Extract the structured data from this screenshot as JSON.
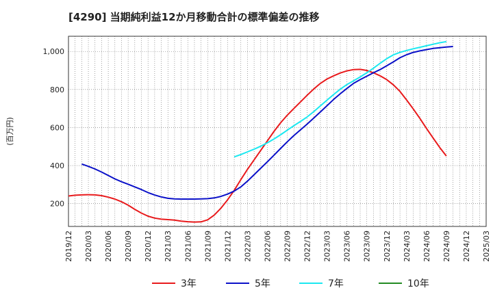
{
  "chart_data": {
    "type": "line",
    "title": "[4290]  当期純利益12か月移動合計の標準偏差の推移",
    "ylabel": "(百万円)",
    "xlabel": "",
    "ylim": [
      80,
      1080
    ],
    "yticks": [
      200,
      400,
      600,
      800,
      "1,000"
    ],
    "ytick_values": [
      200,
      400,
      600,
      800,
      1000
    ],
    "x_ticks": [
      "2019/12",
      "2020/03",
      "2020/06",
      "2020/09",
      "2020/12",
      "2021/03",
      "2021/06",
      "2021/09",
      "2021/12",
      "2022/03",
      "2022/06",
      "2022/09",
      "2022/12",
      "2023/03",
      "2023/06",
      "2023/09",
      "2023/12",
      "2024/03",
      "2024/06",
      "2024/09",
      "2024/12",
      "2025/03"
    ],
    "grid": true,
    "legend_position": "bottom",
    "series": [
      {
        "name": "3年",
        "color": "#e8191b",
        "start_index": 0,
        "values": [
          240,
          244,
          246,
          247,
          246,
          242,
          234,
          224,
          210,
          192,
          170,
          150,
          134,
          124,
          118,
          116,
          113,
          108,
          105,
          103,
          104,
          115,
          140,
          176,
          220,
          270,
          326,
          380,
          430,
          480,
          530,
          580,
          625,
          665,
          700,
          735,
          770,
          803,
          832,
          855,
          872,
          887,
          898,
          905,
          906,
          900,
          888,
          872,
          852,
          825,
          790,
          745,
          698,
          648,
          595,
          545,
          495,
          450
        ]
      },
      {
        "name": "5年",
        "color": "#0a10c8",
        "start_index": 2,
        "values": [
          408,
          396,
          382,
          366,
          348,
          330,
          315,
          302,
          288,
          274,
          258,
          245,
          235,
          228,
          225,
          224,
          224,
          224,
          225,
          226,
          230,
          238,
          250,
          266,
          288,
          318,
          352,
          386,
          420,
          455,
          490,
          525,
          558,
          588,
          618,
          650,
          682,
          715,
          748,
          778,
          806,
          832,
          852,
          870,
          888,
          905,
          925,
          945,
          967,
          983,
          995,
          1003,
          1010,
          1016,
          1020,
          1023,
          1026
        ]
      },
      {
        "name": "7年",
        "color": "#1ae8f0",
        "start_index": 25,
        "values": [
          446,
          458,
          472,
          486,
          502,
          520,
          540,
          562,
          586,
          610,
          632,
          656,
          684,
          714,
          744,
          774,
          802,
          826,
          846,
          866,
          888,
          912,
          938,
          962,
          982,
          995,
          1005,
          1014,
          1022,
          1030,
          1038,
          1046,
          1052
        ]
      },
      {
        "name": "10年",
        "color": "#228b22",
        "start_index": 0,
        "values": []
      }
    ]
  }
}
